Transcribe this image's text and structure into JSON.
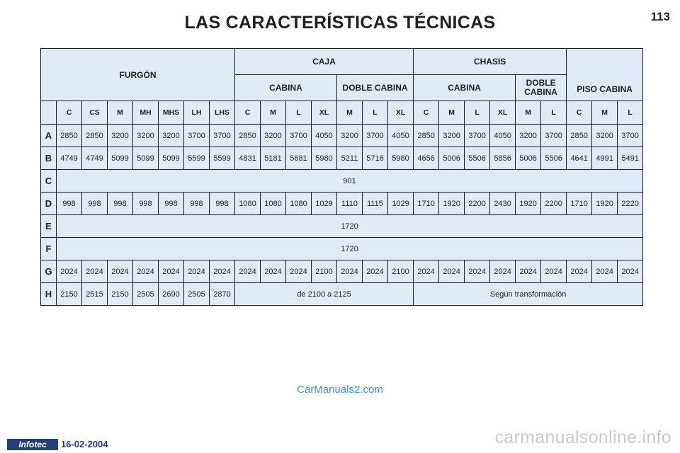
{
  "page": {
    "title": "LAS CARACTERÍSTICAS TÉCNICAS",
    "page_number": "113"
  },
  "header": {
    "group_furgon": "FURGÓN",
    "group_caja": "CAJA",
    "group_chasis": "CHASIS",
    "piso_cabina": "PISO CABINA",
    "caja_cabina": "CABINA",
    "caja_doble": "DOBLE CABINA",
    "chasis_cabina": "CABINA",
    "chasis_doble": "DOBLE CABINA",
    "columns": [
      "C",
      "CS",
      "M",
      "MH",
      "MHS",
      "LH",
      "LHS",
      "C",
      "M",
      "L",
      "XL",
      "M",
      "L",
      "XL",
      "C",
      "M",
      "L",
      "XL",
      "M",
      "L",
      "C",
      "M",
      "L"
    ]
  },
  "rows": {
    "A": {
      "label": "A",
      "values": [
        "2850",
        "2850",
        "3200",
        "3200",
        "3200",
        "3700",
        "3700",
        "2850",
        "3200",
        "3700",
        "4050",
        "3200",
        "3700",
        "4050",
        "2850",
        "3200",
        "3700",
        "4050",
        "3200",
        "3700",
        "2850",
        "3200",
        "3700"
      ]
    },
    "B": {
      "label": "B",
      "values": [
        "4749",
        "4749",
        "5099",
        "5099",
        "5099",
        "5599",
        "5599",
        "4831",
        "5181",
        "5681",
        "5980",
        "5211",
        "5716",
        "5980",
        "4656",
        "5006",
        "5506",
        "5856",
        "5006",
        "5506",
        "4641",
        "4991",
        "5491"
      ]
    },
    "C": {
      "label": "C",
      "value": "901"
    },
    "D": {
      "label": "D",
      "values": [
        "998",
        "998",
        "998",
        "998",
        "998",
        "998",
        "998",
        "1080",
        "1080",
        "1080",
        "1029",
        "1110",
        "1115",
        "1029",
        "1710",
        "1920",
        "2200",
        "2430",
        "1920",
        "2200",
        "1710",
        "1920",
        "2220"
      ]
    },
    "E": {
      "label": "E",
      "value": "1720"
    },
    "F": {
      "label": "F",
      "value": "1720"
    },
    "G": {
      "label": "G",
      "values": [
        "2024",
        "2024",
        "2024",
        "2024",
        "2024",
        "2024",
        "2024",
        "2024",
        "2024",
        "2024",
        "2100",
        "2024",
        "2024",
        "2100",
        "2024",
        "2024",
        "2024",
        "2024",
        "2024",
        "2024",
        "2024",
        "2024",
        "2024"
      ]
    },
    "H": {
      "label": "H",
      "values": [
        "2150",
        "2515",
        "2150",
        "2505",
        "2690",
        "2505",
        "2870"
      ],
      "caja_range": "de 2100 a 2125",
      "chasis_note": "Según transformación"
    }
  },
  "footer": {
    "watermark_mid": "CarManuals2.com",
    "logo": "Infotec",
    "date": "16-02-2004",
    "site": "carmanualsonline.info"
  },
  "colors": {
    "table_bg": "#dfeaf6",
    "border": "#1c1c1c",
    "watermark": "#4f8fd0",
    "logo_bg": "#1f3e7a"
  }
}
